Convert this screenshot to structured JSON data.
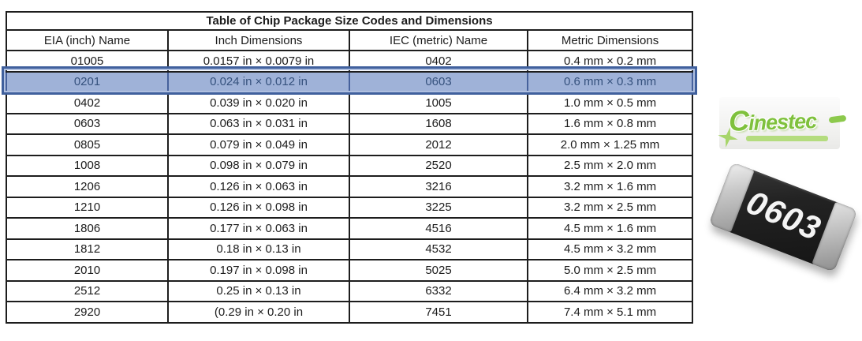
{
  "table": {
    "title": "Table of Chip Package Size Codes and Dimensions",
    "columns": [
      "EIA (inch) Name",
      "Inch Dimensions",
      "IEC (metric) Name",
      "Metric Dimensions"
    ],
    "rows": [
      [
        "01005",
        "0.0157 in × 0.0079 in",
        "0402",
        "0.4 mm × 0.2 mm"
      ],
      [
        "0201",
        "0.024 in × 0.012 in",
        "0603",
        "0.6 mm × 0.3 mm"
      ],
      [
        "0402",
        "0.039 in × 0.020 in",
        "1005",
        "1.0 mm × 0.5 mm"
      ],
      [
        "0603",
        "0.063 in × 0.031 in",
        "1608",
        "1.6 mm × 0.8 mm"
      ],
      [
        "0805",
        "0.079 in × 0.049 in",
        "2012",
        "2.0 mm × 1.25 mm"
      ],
      [
        "1008",
        "0.098 in × 0.079 in",
        "2520",
        "2.5 mm × 2.0 mm"
      ],
      [
        "1206",
        "0.126 in × 0.063 in",
        "3216",
        "3.2 mm × 1.6 mm"
      ],
      [
        "1210",
        "0.126 in × 0.098 in",
        "3225",
        "3.2 mm × 2.5 mm"
      ],
      [
        "1806",
        "0.177 in × 0.063 in",
        "4516",
        "4.5 mm × 1.6 mm"
      ],
      [
        "1812",
        "0.18 in × 0.13 in",
        "4532",
        "4.5 mm × 3.2 mm"
      ],
      [
        "2010",
        "0.197 in × 0.098 in",
        "5025",
        "5.0 mm × 2.5 mm"
      ],
      [
        "2512",
        "0.25 in × 0.13 in",
        "6332",
        "6.4 mm × 3.2 mm"
      ],
      [
        "2920",
        "(0.29 in × 0.20 in",
        "7451",
        "7.4 mm × 5.1 mm"
      ]
    ],
    "highlighted_row_index": 1,
    "highlight_fill_color": "#9fb2d8",
    "highlight_border_color": "#40609d",
    "highlight_text_color": "#35517d"
  },
  "logo": {
    "text": "Cinestec",
    "first_letter": "C",
    "rest": "inestec",
    "color": "#7fc13d"
  },
  "chip_photo": {
    "marking": "0603",
    "body_color": "#1f1f1f",
    "cap_color": "#c9c9c9"
  }
}
